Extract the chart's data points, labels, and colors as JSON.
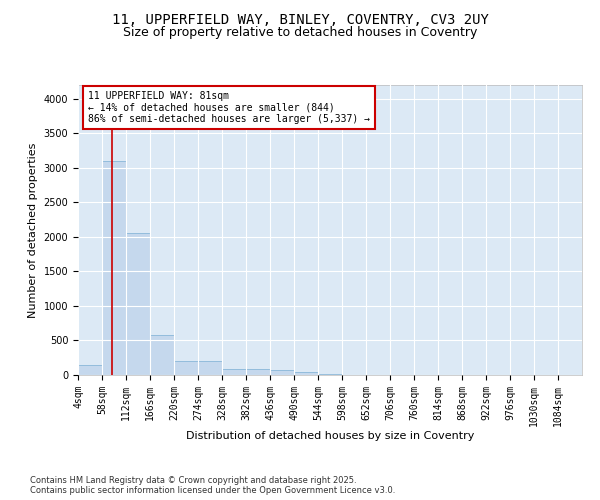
{
  "title1": "11, UPPERFIELD WAY, BINLEY, COVENTRY, CV3 2UY",
  "title2": "Size of property relative to detached houses in Coventry",
  "xlabel": "Distribution of detached houses by size in Coventry",
  "ylabel": "Number of detached properties",
  "bar_color": "#c5d8ed",
  "bar_edge_color": "#7aafd4",
  "background_color": "#dce9f5",
  "grid_color": "#ffffff",
  "bin_labels": [
    "4sqm",
    "58sqm",
    "112sqm",
    "166sqm",
    "220sqm",
    "274sqm",
    "328sqm",
    "382sqm",
    "436sqm",
    "490sqm",
    "544sqm",
    "598sqm",
    "652sqm",
    "706sqm",
    "760sqm",
    "814sqm",
    "868sqm",
    "922sqm",
    "976sqm",
    "1030sqm",
    "1084sqm"
  ],
  "bar_values": [
    150,
    3100,
    2050,
    580,
    210,
    210,
    90,
    80,
    70,
    50,
    20,
    5,
    2,
    1,
    0,
    0,
    0,
    0,
    0,
    0,
    0
  ],
  "ylim": [
    0,
    4200
  ],
  "yticks": [
    0,
    500,
    1000,
    1500,
    2000,
    2500,
    3000,
    3500,
    4000
  ],
  "annotation_text": "11 UPPERFIELD WAY: 81sqm\n← 14% of detached houses are smaller (844)\n86% of semi-detached houses are larger (5,337) →",
  "annotation_box_color": "#ffffff",
  "annotation_box_edge": "#cc0000",
  "vline_color": "#cc0000",
  "footer_text": "Contains HM Land Registry data © Crown copyright and database right 2025.\nContains public sector information licensed under the Open Government Licence v3.0.",
  "title_fontsize": 10,
  "subtitle_fontsize": 9,
  "tick_fontsize": 7,
  "label_fontsize": 8,
  "annotation_fontsize": 7
}
